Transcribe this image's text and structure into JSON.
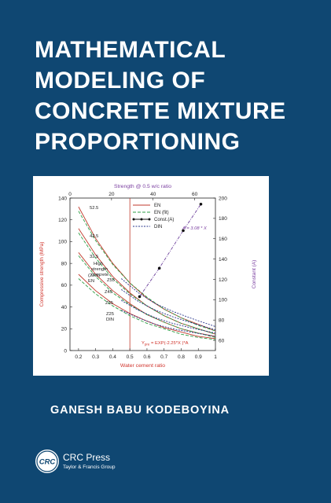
{
  "title_lines": [
    "MATHEMATICAL",
    "MODELING OF",
    "CONCRETE MIXTURE",
    "PROPORTIONING"
  ],
  "author": "GANESH BABU KODEBOYINA",
  "publisher": {
    "logo_text": "CRC",
    "name": "CRC Press",
    "group": "Taylor & Francis Group"
  },
  "colors": {
    "background": "#0f4772",
    "en_series": "#c0392b",
    "en_fit_series": "#2e9e45",
    "const_series": "#6a3d9a",
    "din_series": "#27348b",
    "annotation": "#7b3fa0",
    "formula": "#d0342c"
  },
  "chart_data": {
    "type": "line",
    "xlabel": "Water cement ratio",
    "xlim": [
      0.15,
      1.0
    ],
    "x_ticks": [
      "0.2",
      "0.3",
      "0.4",
      "0.5",
      "0.6",
      "0.7",
      "0.8",
      "0.9",
      "1"
    ],
    "ylabel": "Compressive strength (MPa)",
    "ylim": [
      0,
      140
    ],
    "y_ticks": [
      "0",
      "20",
      "40",
      "60",
      "80",
      "100",
      "120",
      "140"
    ],
    "x2label": "Strength @ 0.5 w/c ratio",
    "x2lim": [
      0,
      70
    ],
    "x2_ticks": [
      "0",
      "20",
      "40",
      "60"
    ],
    "y2label": "Constant (A)",
    "y2lim": [
      50,
      200
    ],
    "y2_ticks": [
      "60",
      "80",
      "100",
      "120",
      "140",
      "160",
      "180",
      "200"
    ],
    "vline_x": 0.5,
    "legend": [
      "EN",
      "EN (fit)",
      "Const.(A)",
      "DIN"
    ],
    "annotations": [
      "52.5",
      "42.5",
      "32.5",
      "(22.5)",
      "EN",
      "High",
      "strength",
      "concrete",
      "Z55",
      "Z45",
      "Z35",
      "Z25",
      "DIN",
      "A = 3.08 * X"
    ],
    "formula": {
      "main": "Y",
      "sub": "pre",
      "rest": " = EXP(-2.25*X )*A"
    },
    "series": [
      {
        "name": "EN",
        "curves": [
          {
            "label": "52.5",
            "x": [
              0.2,
              0.3,
              0.4,
              0.5,
              0.6,
              0.7,
              0.8,
              0.9,
              1.0
            ],
            "y": [
              132,
              103,
              80,
              62,
              48,
              38,
              30,
              24,
              18
            ]
          },
          {
            "label": "42.5",
            "x": [
              0.2,
              0.3,
              0.4,
              0.5,
              0.6,
              0.7,
              0.8,
              0.9,
              1.0
            ],
            "y": [
              112,
              88,
              68,
              53,
              41,
              32,
              25,
              20,
              15
            ]
          },
          {
            "label": "32.5",
            "x": [
              0.2,
              0.3,
              0.4,
              0.5,
              0.6,
              0.7,
              0.8,
              0.9,
              1.0
            ],
            "y": [
              90,
              70,
              55,
              43,
              33,
              26,
              20,
              16,
              13
            ]
          },
          {
            "label": "22.5",
            "x": [
              0.2,
              0.3,
              0.4,
              0.5,
              0.6,
              0.7,
              0.8,
              0.9,
              1.0
            ],
            "y": [
              70,
              55,
              43,
              34,
              27,
              21,
              17,
              13,
              11
            ]
          }
        ]
      },
      {
        "name": "EN (fit)",
        "curves": [
          {
            "label": "52.5",
            "x": [
              0.2,
              0.3,
              0.4,
              0.5,
              0.6,
              0.7,
              0.8,
              0.9,
              1.0
            ],
            "y": [
              128,
              101,
              79,
              62,
              49,
              38,
              30,
              23,
              18
            ]
          },
          {
            "label": "42.5",
            "x": [
              0.2,
              0.3,
              0.4,
              0.5,
              0.6,
              0.7,
              0.8,
              0.9,
              1.0
            ],
            "y": [
              108,
              85,
              66,
              52,
              41,
              32,
              25,
              20,
              15
            ]
          },
          {
            "label": "32.5",
            "x": [
              0.2,
              0.3,
              0.4,
              0.5,
              0.6,
              0.7,
              0.8,
              0.9,
              1.0
            ],
            "y": [
              87,
              68,
              53,
              42,
              33,
              26,
              20,
              16,
              12
            ]
          },
          {
            "label": "22.5",
            "x": [
              0.2,
              0.3,
              0.4,
              0.5,
              0.6,
              0.7,
              0.8,
              0.9,
              1.0
            ],
            "y": [
              66,
              52,
              41,
              32,
              25,
              20,
              15,
              12,
              10
            ]
          }
        ]
      },
      {
        "name": "DIN",
        "curves": [
          {
            "label": "Z55",
            "x": [
              0.45,
              0.55,
              0.65,
              0.75,
              0.85,
              1.0
            ],
            "y": [
              66,
              53,
              43,
              36,
              30,
              22
            ]
          },
          {
            "label": "Z45",
            "x": [
              0.45,
              0.55,
              0.65,
              0.75,
              0.85,
              1.0
            ],
            "y": [
              56,
              45,
              37,
              31,
              26,
              19
            ]
          },
          {
            "label": "Z35",
            "x": [
              0.45,
              0.55,
              0.65,
              0.75,
              0.85,
              1.0
            ],
            "y": [
              46,
              37,
              30,
              25,
              21,
              16
            ]
          },
          {
            "label": "Z25",
            "x": [
              0.45,
              0.55,
              0.65,
              0.75,
              0.85,
              1.0
            ],
            "y": [
              37,
              30,
              24,
              20,
              17,
              13
            ]
          }
        ]
      },
      {
        "name": "Const.(A)",
        "axis": "x2-y2",
        "x": [
          33.5,
          43,
          54.5,
          63
        ],
        "y": [
          103,
          131,
          168,
          194
        ]
      }
    ]
  }
}
